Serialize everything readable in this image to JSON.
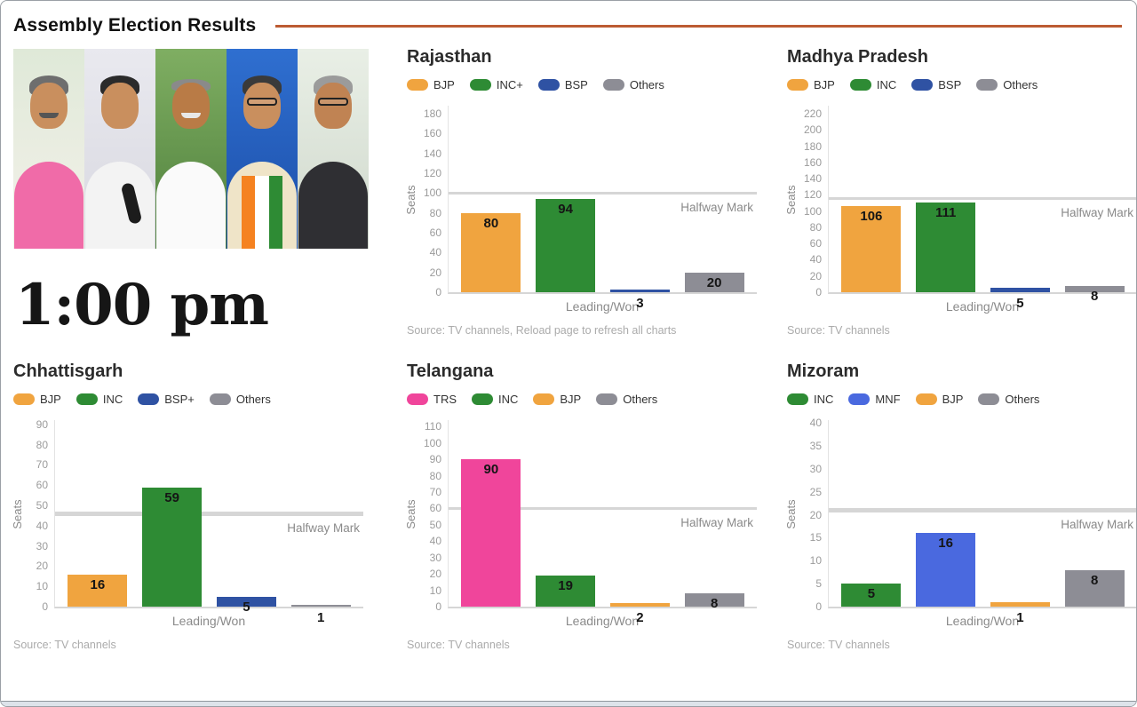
{
  "page": {
    "title": "Assembly Election Results",
    "time": "1:00 pm",
    "accent_rule_color": "#bc5b32"
  },
  "chart_data": [
    {
      "type": "bar",
      "title": "Rajasthan",
      "categories": [
        "BJP",
        "INC+",
        "BSP",
        "Others"
      ],
      "values": [
        80,
        94,
        3,
        20
      ],
      "colors": [
        "#f0a43f",
        "#2e8b34",
        "#2f52a3",
        "#8d8d95"
      ],
      "value_label_pos": [
        "in",
        "in",
        "below",
        "in"
      ],
      "xlabel": "Leading/Won",
      "ylabel": "Seats",
      "ylim": [
        0,
        190
      ],
      "ytick_step": 20,
      "grid": false,
      "legend_position": "top",
      "halfway": {
        "value": 100,
        "label": "Halfway Mark",
        "weight": 3
      },
      "source": "Source: TV channels, Reload page to refresh all charts"
    },
    {
      "type": "bar",
      "title": "Madhya Pradesh",
      "categories": [
        "BJP",
        "INC",
        "BSP",
        "Others"
      ],
      "values": [
        106,
        111,
        5,
        8
      ],
      "colors": [
        "#f0a43f",
        "#2e8b34",
        "#2f52a3",
        "#8d8d95"
      ],
      "value_label_pos": [
        "in",
        "in",
        "below",
        "in"
      ],
      "xlabel": "Leading/Won",
      "ylabel": "Seats",
      "ylim": [
        0,
        232
      ],
      "ytick_step": 20,
      "grid": false,
      "legend_position": "top",
      "halfway": {
        "value": 116,
        "label": "Halfway Mark",
        "weight": 3
      },
      "source": "Source: TV channels"
    },
    {
      "type": "bar",
      "title": "Chhattisgarh",
      "categories": [
        "BJP",
        "INC",
        "BSP+",
        "Others"
      ],
      "values": [
        16,
        59,
        5,
        1
      ],
      "colors": [
        "#f0a43f",
        "#2e8b34",
        "#2f52a3",
        "#8d8d95"
      ],
      "value_label_pos": [
        "in",
        "in",
        "in",
        "below"
      ],
      "xlabel": "Leading/Won",
      "ylabel": "Seats",
      "ylim": [
        0,
        93
      ],
      "ytick_step": 10,
      "grid": false,
      "legend_position": "top",
      "halfway": {
        "value": 46,
        "label": "Halfway Mark",
        "weight": 5
      },
      "source": "Source: TV channels"
    },
    {
      "type": "bar",
      "title": "Telangana",
      "categories": [
        "TRS",
        "INC",
        "BJP",
        "Others"
      ],
      "values": [
        90,
        19,
        2,
        8
      ],
      "colors": [
        "#f0459b",
        "#2e8b34",
        "#f0a43f",
        "#8d8d95"
      ],
      "value_label_pos": [
        "in",
        "in",
        "below",
        "in"
      ],
      "xlabel": "Leading/Won",
      "ylabel": "Seats",
      "ylim": [
        0,
        115
      ],
      "ytick_step": 10,
      "grid": false,
      "legend_position": "top",
      "halfway": {
        "value": 60,
        "label": "Halfway Mark",
        "weight": 3
      },
      "source": "Source: TV channels"
    },
    {
      "type": "bar",
      "title": "Mizoram",
      "categories": [
        "INC",
        "MNF",
        "BJP",
        "Others"
      ],
      "values": [
        5,
        16,
        1,
        8
      ],
      "colors": [
        "#2e8b34",
        "#4a69df",
        "#f0a43f",
        "#8d8d95"
      ],
      "value_label_pos": [
        "in",
        "in",
        "below",
        "in"
      ],
      "xlabel": "Leading/Won",
      "ylabel": "Seats",
      "ylim": [
        0,
        41
      ],
      "ytick_step": 5,
      "grid": false,
      "legend_position": "top",
      "halfway": {
        "value": 21,
        "label": "Halfway Mark",
        "weight": 5
      },
      "source": "Source: TV channels"
    }
  ]
}
